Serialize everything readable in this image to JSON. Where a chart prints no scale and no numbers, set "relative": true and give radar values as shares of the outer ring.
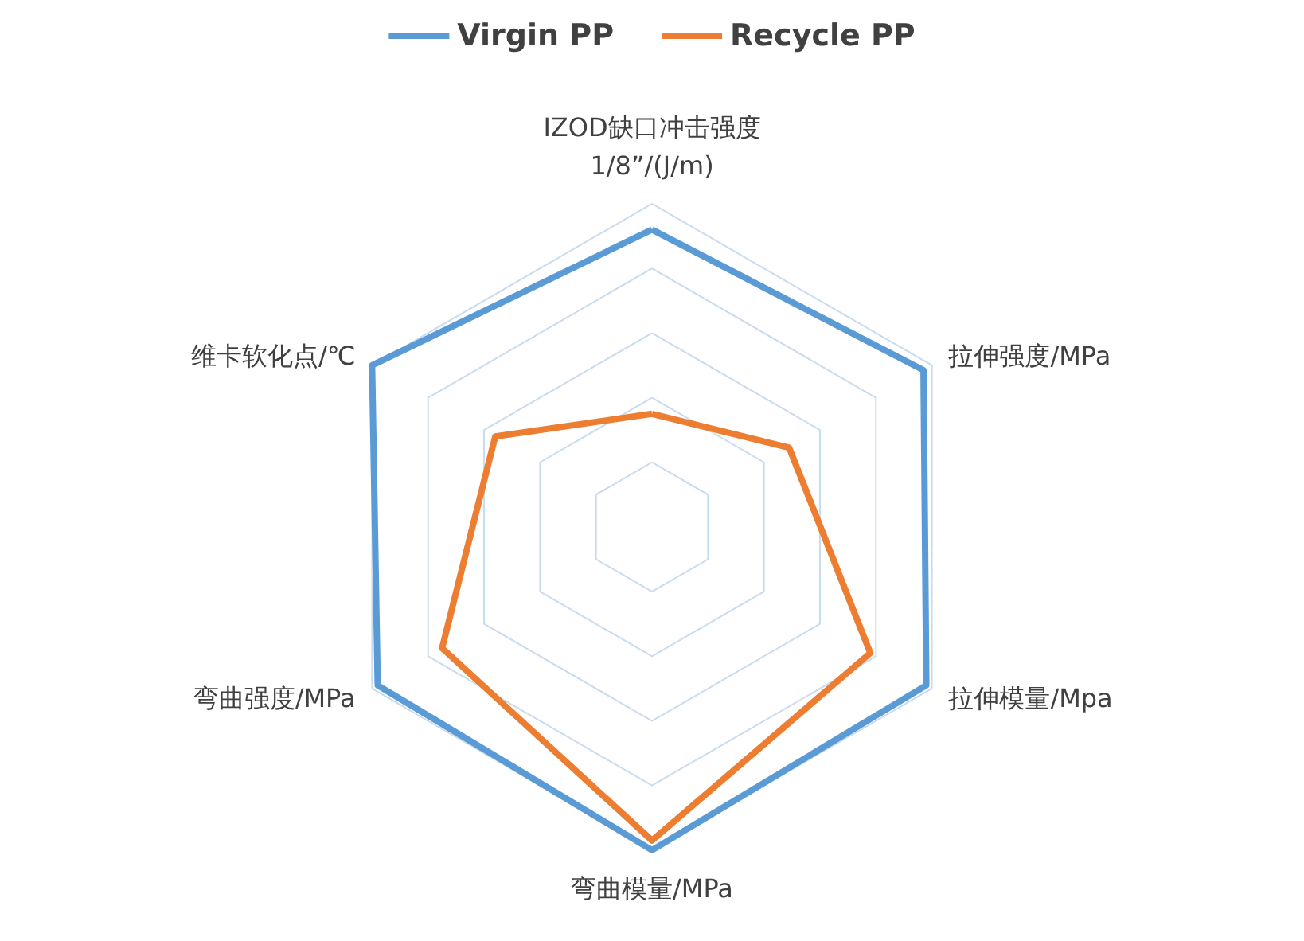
{
  "chart_data": {
    "type": "radar",
    "relative": true,
    "categories": [
      "IZOD缺口冲击强度\n1/8”/(J/m)",
      "拉伸强度/MPa",
      "拉伸模量/Mpa",
      "弯曲模量/MPa",
      "弯曲强度/MPa",
      "维卡软化点/℃"
    ],
    "series": [
      {
        "name": "Virgin PP",
        "color": "#5b9bd5",
        "values": [
          0.92,
          0.97,
          0.98,
          1.0,
          0.98,
          1.0
        ]
      },
      {
        "name": "Recycle PP",
        "color": "#ed7d31",
        "values": [
          0.35,
          0.49,
          0.78,
          0.97,
          0.75,
          0.56
        ]
      }
    ],
    "legend": "top",
    "grid": true,
    "marker": "none"
  }
}
